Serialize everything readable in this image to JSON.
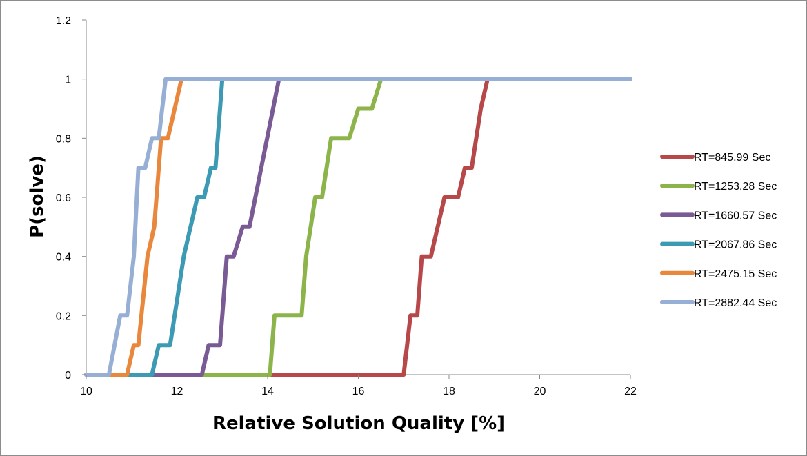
{
  "chart_data": {
    "type": "line",
    "xlabel": "Relative Solution Quality [%]",
    "ylabel": "P(solve)",
    "xlim": [
      10,
      22
    ],
    "ylim": [
      0,
      1.2
    ],
    "x_ticks": [
      10,
      12,
      14,
      16,
      18,
      20,
      22
    ],
    "y_ticks": [
      0,
      0.2,
      0.4,
      0.6,
      0.8,
      1,
      1.2
    ],
    "grid": "off",
    "legend_position": "right",
    "series": [
      {
        "name": "RT=845.99 Sec",
        "color": "#b7484a",
        "points": [
          [
            10,
            0
          ],
          [
            16.9,
            0
          ],
          [
            17.0,
            0
          ],
          [
            17.15,
            0.2
          ],
          [
            17.3,
            0.2
          ],
          [
            17.4,
            0.4
          ],
          [
            17.6,
            0.4
          ],
          [
            17.9,
            0.6
          ],
          [
            18.2,
            0.6
          ],
          [
            18.35,
            0.7
          ],
          [
            18.5,
            0.7
          ],
          [
            18.7,
            0.9
          ],
          [
            18.85,
            1
          ],
          [
            22,
            1
          ]
        ]
      },
      {
        "name": "RT=1253.28 Sec",
        "color": "#8db34b",
        "points": [
          [
            10,
            0
          ],
          [
            13.95,
            0
          ],
          [
            14.05,
            0
          ],
          [
            14.15,
            0.2
          ],
          [
            14.75,
            0.2
          ],
          [
            14.85,
            0.4
          ],
          [
            15.05,
            0.6
          ],
          [
            15.2,
            0.6
          ],
          [
            15.4,
            0.8
          ],
          [
            15.8,
            0.8
          ],
          [
            16.0,
            0.9
          ],
          [
            16.3,
            0.9
          ],
          [
            16.5,
            1
          ],
          [
            22,
            1
          ]
        ]
      },
      {
        "name": "RT=1660.57 Sec",
        "color": "#7a5a95",
        "points": [
          [
            10,
            0
          ],
          [
            12.55,
            0
          ],
          [
            12.7,
            0.1
          ],
          [
            12.95,
            0.1
          ],
          [
            13.1,
            0.4
          ],
          [
            13.25,
            0.4
          ],
          [
            13.45,
            0.5
          ],
          [
            13.6,
            0.5
          ],
          [
            14.25,
            1
          ],
          [
            22,
            1
          ]
        ]
      },
      {
        "name": "RT=2067.86 Sec",
        "color": "#3c9ab4",
        "points": [
          [
            10,
            0
          ],
          [
            11.45,
            0
          ],
          [
            11.6,
            0.1
          ],
          [
            11.85,
            0.1
          ],
          [
            12.15,
            0.4
          ],
          [
            12.45,
            0.6
          ],
          [
            12.6,
            0.6
          ],
          [
            12.75,
            0.7
          ],
          [
            12.85,
            0.7
          ],
          [
            13.0,
            1
          ],
          [
            22,
            1
          ]
        ]
      },
      {
        "name": "RT=2475.15 Sec",
        "color": "#e9883d",
        "points": [
          [
            10,
            0
          ],
          [
            10.9,
            0
          ],
          [
            11.05,
            0.1
          ],
          [
            11.15,
            0.1
          ],
          [
            11.35,
            0.4
          ],
          [
            11.5,
            0.5
          ],
          [
            11.65,
            0.8
          ],
          [
            11.8,
            0.8
          ],
          [
            12.1,
            1
          ],
          [
            22,
            1
          ]
        ]
      },
      {
        "name": "RT=2882.44 Sec",
        "color": "#97afd4",
        "points": [
          [
            10,
            0
          ],
          [
            10.5,
            0
          ],
          [
            10.75,
            0.2
          ],
          [
            10.9,
            0.2
          ],
          [
            11.05,
            0.4
          ],
          [
            11.15,
            0.7
          ],
          [
            11.3,
            0.7
          ],
          [
            11.45,
            0.8
          ],
          [
            11.6,
            0.8
          ],
          [
            11.75,
            1
          ],
          [
            22,
            1
          ]
        ]
      }
    ]
  }
}
